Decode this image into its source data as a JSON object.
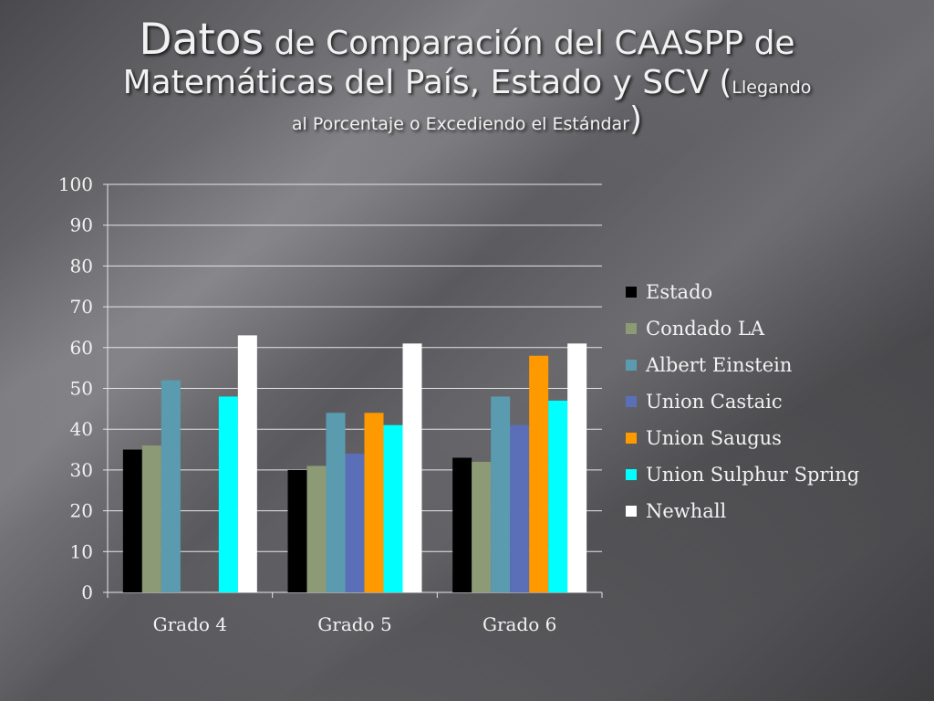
{
  "slide": {
    "title_word1": "Datos",
    "title_rest1": " de Comparación del CAASPP de",
    "title_line2": "Matemáticas del País, Estado y SCV (",
    "title_line2_small": "Llegando",
    "title_line3_small": "al Porcentaje o Excediendo el Estándar",
    "title_close": ")"
  },
  "chart_data": {
    "type": "bar",
    "title": "",
    "xlabel": "",
    "ylabel": "",
    "ylim": [
      0,
      100
    ],
    "yticks": [
      0,
      10,
      20,
      30,
      40,
      50,
      60,
      70,
      80,
      90,
      100
    ],
    "grid": true,
    "legend_position": "right",
    "categories": [
      "Grado 4",
      "Grado 5",
      "Grado 6"
    ],
    "series": [
      {
        "name": "Estado",
        "color": "#000000",
        "values": [
          35,
          30,
          33
        ]
      },
      {
        "name": "Condado LA",
        "color": "#8c9a76",
        "values": [
          36,
          31,
          32
        ]
      },
      {
        "name": "Albert Einstein",
        "color": "#5b9bb0",
        "values": [
          52,
          44,
          48
        ]
      },
      {
        "name": "Union Castaic",
        "color": "#5a6fb8",
        "values": [
          null,
          34,
          41
        ]
      },
      {
        "name": "Union Saugus",
        "color": "#ff9900",
        "values": [
          null,
          44,
          58
        ]
      },
      {
        "name": "Union Sulphur Spring",
        "color": "#00ffff",
        "values": [
          48,
          41,
          47
        ]
      },
      {
        "name": "Newhall",
        "color": "#ffffff",
        "values": [
          63,
          61,
          61
        ]
      }
    ]
  }
}
